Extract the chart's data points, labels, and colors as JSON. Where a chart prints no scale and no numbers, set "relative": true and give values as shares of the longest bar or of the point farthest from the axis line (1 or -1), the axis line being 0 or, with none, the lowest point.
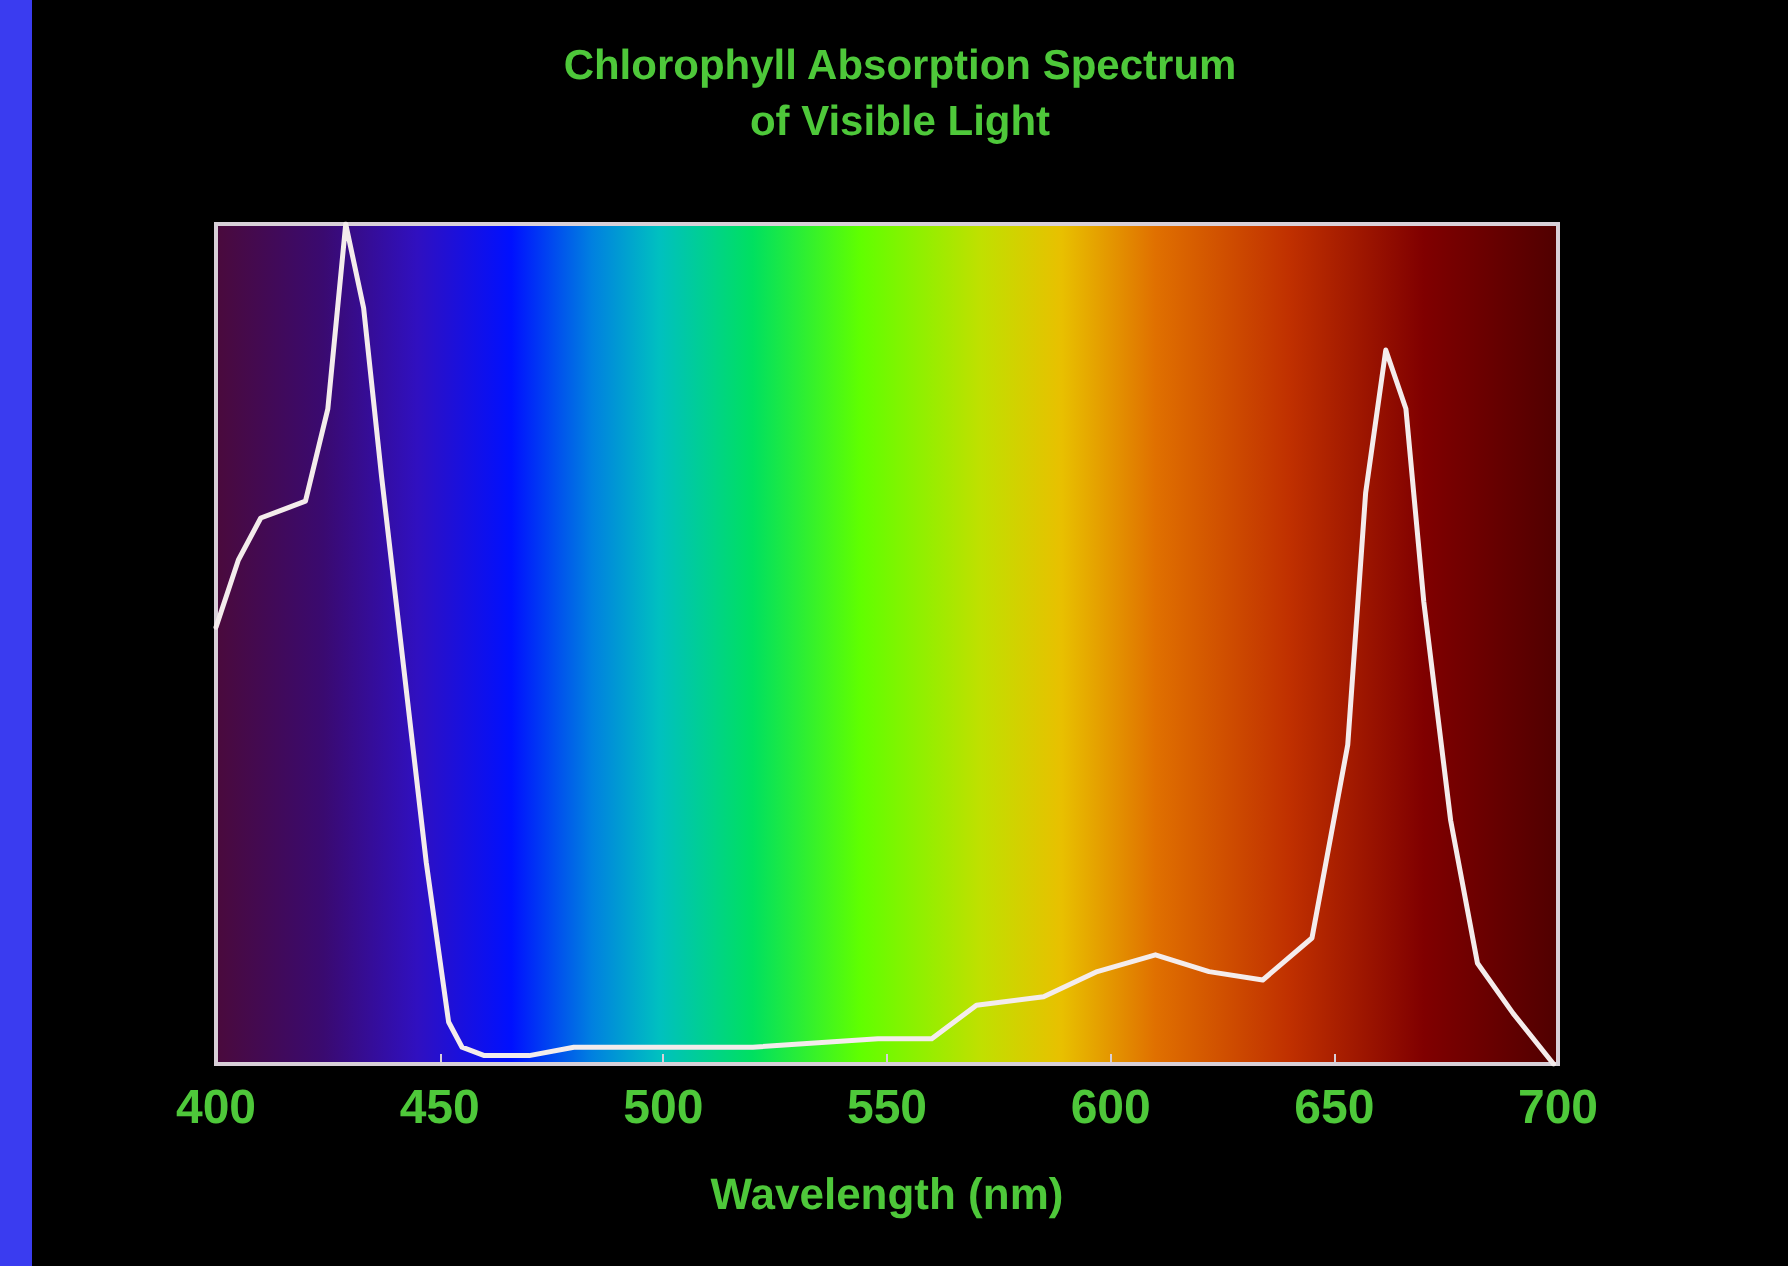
{
  "chart_data": {
    "type": "line",
    "title": "Chlorophyll Absorption Spectrum\nof Visible Light",
    "xlabel": "Wavelength (nm)",
    "relative": true,
    "x": [
      400,
      405,
      410,
      415,
      420,
      425,
      429,
      433,
      437,
      442,
      447,
      452,
      455,
      460,
      470,
      480,
      500,
      520,
      548,
      560,
      570,
      585,
      597,
      610,
      622,
      634,
      645,
      653,
      657,
      661.5,
      666,
      670,
      676,
      682,
      690,
      699
    ],
    "series": [
      {
        "color": "#f4ecec",
        "values": [
          0.52,
          0.6,
          0.65,
          0.66,
          0.67,
          0.78,
          1,
          0.9,
          0.7,
          0.47,
          0.24,
          0.05,
          0.02,
          0.01,
          0.01,
          0.02,
          0.02,
          0.02,
          0.03,
          0.03,
          0.07,
          0.08,
          0.11,
          0.13,
          0.11,
          0.1,
          0.15,
          0.38,
          0.68,
          0.85,
          0.78,
          0.55,
          0.29,
          0.12,
          0.06,
          0
        ]
      }
    ],
    "xlim": [
      400,
      700
    ],
    "xticks": [
      400,
      450,
      500,
      550,
      600,
      650,
      700
    ],
    "grid": false,
    "marker": "none",
    "line_style": "solid"
  }
}
